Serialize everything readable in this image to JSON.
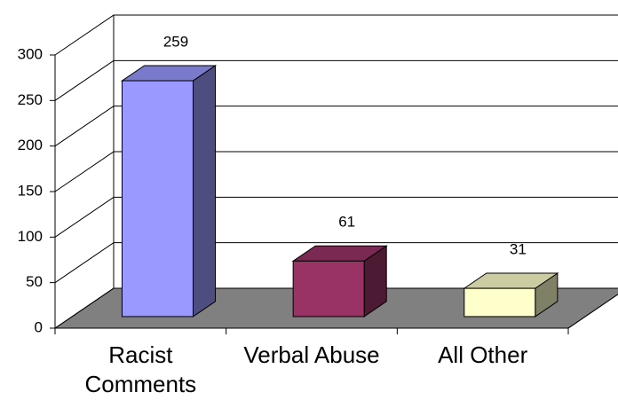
{
  "chart_data": {
    "type": "bar",
    "categories": [
      "Racist Comments",
      "Verbal Abuse",
      "All Other"
    ],
    "values": [
      259,
      61,
      31
    ],
    "colors": [
      "#9999ff",
      "#993366",
      "#ffffcc"
    ],
    "ylim": [
      0,
      300
    ],
    "yticks": [
      0,
      50,
      100,
      150,
      200,
      250,
      300
    ],
    "grid": true
  }
}
